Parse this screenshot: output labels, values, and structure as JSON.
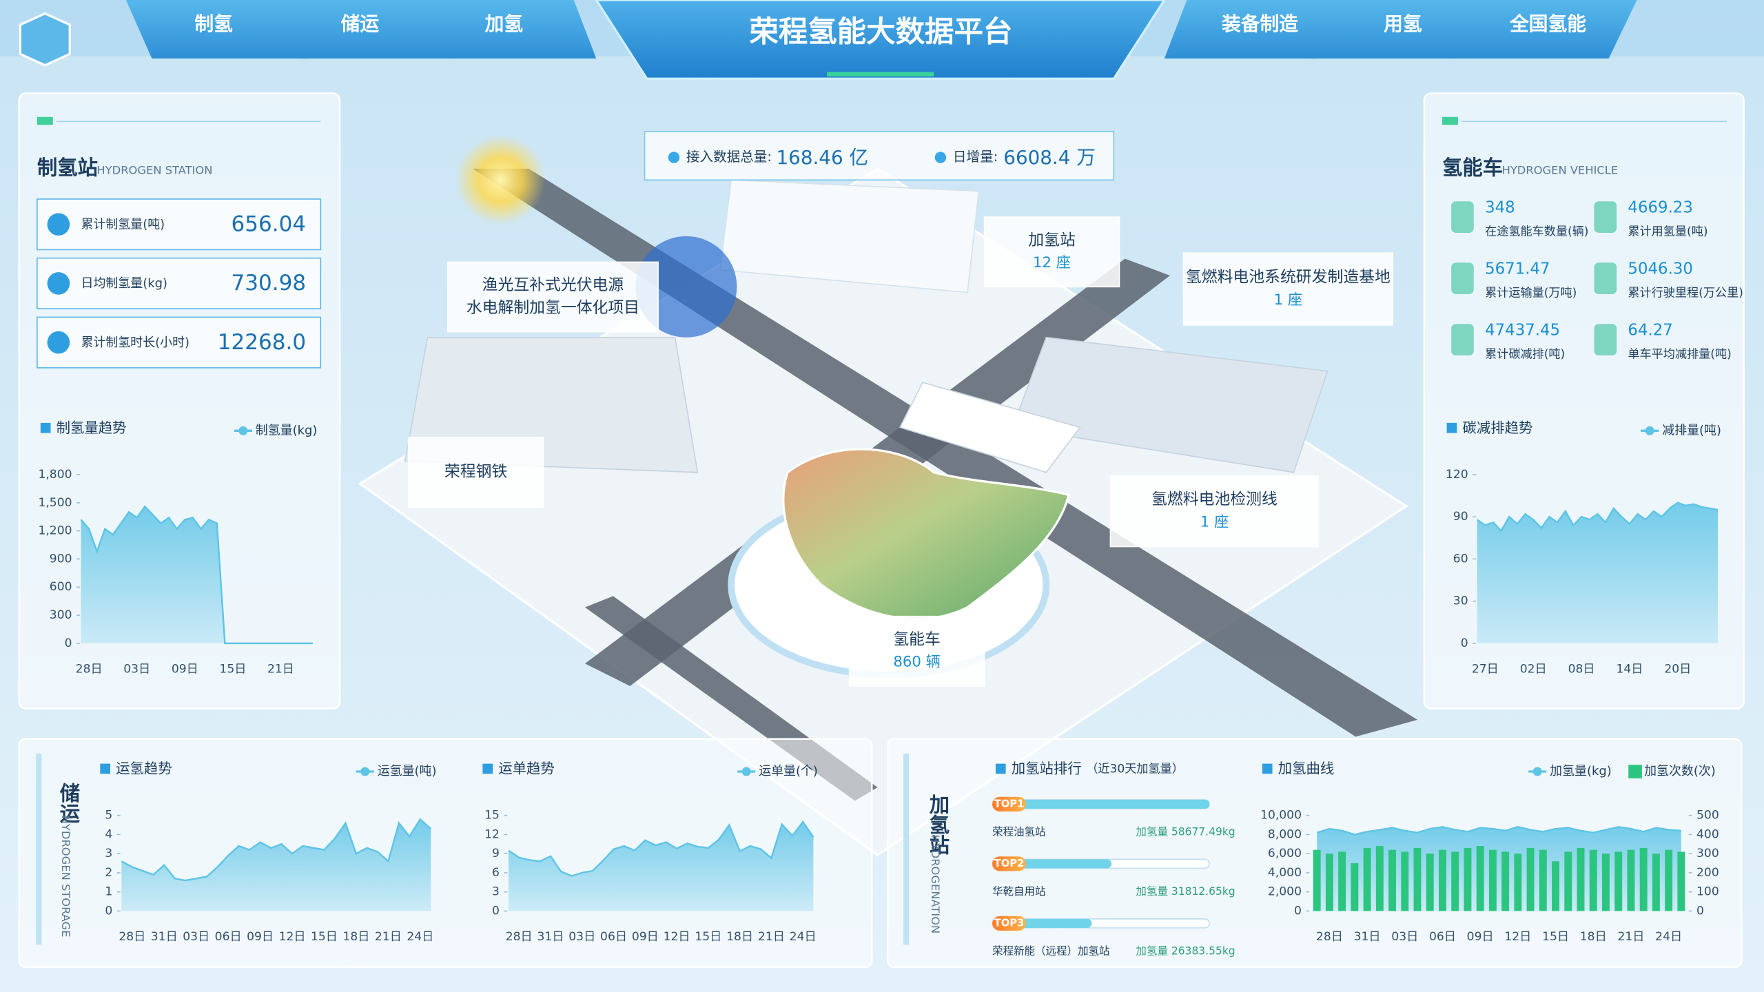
{
  "header": {
    "title": "荣程氢能大数据平台",
    "nav_left": [
      "制氢",
      "储运",
      "加氢"
    ],
    "nav_right": [
      "装备制造",
      "用氢",
      "全国氢能"
    ]
  },
  "stats": {
    "total_label": "接入数据总量:",
    "total": "168.46 亿",
    "daily_label": "日增量:",
    "daily": "6608.4 万"
  },
  "hydrogen_station": {
    "title": "制氢站",
    "subtitle": "HYDROGEN STATION",
    "kpis": [
      {
        "label": "累计制氢量(吨)",
        "value": "656.04"
      },
      {
        "label": "日均制氢量(kg)",
        "value": "730.98"
      },
      {
        "label": "累计制氢时长(小时)",
        "value": "12268.0"
      }
    ]
  },
  "vehicle": {
    "title": "氢能车",
    "subtitle": "HYDROGEN VEHICLE",
    "kpis": [
      {
        "value": "348",
        "label": "在途氢能车数量(辆)"
      },
      {
        "value": "4669.23",
        "label": "累计用氢量(吨)"
      },
      {
        "value": "5671.47",
        "label": "累计运输量(万吨)"
      },
      {
        "value": "5046.30",
        "label": "累计行驶里程(万公里)"
      },
      {
        "value": "47437.45",
        "label": "累计碳减排(吨)"
      },
      {
        "value": "64.27",
        "label": "单车平均减排量(吨)"
      }
    ]
  },
  "storage": {
    "title": "储运",
    "subtitle": "HYDROGEN STORAGE"
  },
  "refuel": {
    "title": "加氢站",
    "subtitle": "HYDROGENATION"
  },
  "map_labels": [
    {
      "lines": [
        "加氢站"
      ],
      "value": "12 座"
    },
    {
      "lines": [
        "氢燃料电池系统研发制造基地"
      ],
      "value": "1 座"
    },
    {
      "lines": [
        "渔光互补式光伏电源",
        "水电解制加氢一体化项目"
      ]
    },
    {
      "lines": [
        "荣程钢铁"
      ]
    },
    {
      "lines": [
        "氢燃料电池检测线"
      ],
      "value": "1 座"
    },
    {
      "lines": [
        "氢能车"
      ],
      "value": "860 辆"
    }
  ],
  "chart_data": [
    {
      "type": "area",
      "title": "制氢量趋势",
      "categories": [
        null,
        "28日",
        null,
        null,
        null,
        null,
        null,
        "03日",
        null,
        null,
        null,
        null,
        null,
        "09日",
        null,
        null,
        null,
        null,
        null,
        "15日",
        null,
        null,
        null,
        null,
        null,
        "21日",
        null,
        null,
        null,
        null
      ],
      "series": [
        {
          "name": "制氢量(kg)",
          "color": "#5ec4e6",
          "values": [
            1320,
            1220,
            980,
            1220,
            1160,
            1280,
            1400,
            1340,
            1460,
            1370,
            1280,
            1340,
            1220,
            1320,
            1340,
            1220,
            1320,
            1280,
            0,
            0,
            0,
            0,
            0,
            0,
            0,
            0,
            0,
            0,
            0,
            0
          ]
        }
      ],
      "ylim": [
        0,
        1800
      ],
      "yticks": [
        0,
        300,
        600,
        900,
        {
          "value": 1200,
          "label": "1,200"
        },
        {
          "value": 1500,
          "label": "1,500"
        },
        {
          "value": 1800,
          "label": "1,800"
        }
      ]
    },
    {
      "type": "area",
      "title": "碳减排趋势",
      "categories": [
        null,
        "27日",
        null,
        null,
        null,
        null,
        null,
        "02日",
        null,
        null,
        null,
        null,
        null,
        "08日",
        null,
        null,
        null,
        null,
        null,
        "14日",
        null,
        null,
        null,
        null,
        null,
        "20日",
        null,
        null,
        null,
        null,
        null
      ],
      "series": [
        {
          "name": "减排量(吨)",
          "color": "#5ec4e6",
          "values": [
            88,
            84,
            86,
            80,
            90,
            85,
            92,
            88,
            82,
            90,
            86,
            94,
            84,
            90,
            88,
            92,
            86,
            96,
            90,
            85,
            92,
            88,
            94,
            90,
            96,
            100,
            98,
            99,
            97,
            96,
            95
          ]
        }
      ],
      "ylim": [
        0,
        120
      ],
      "yticks": [
        0,
        30,
        60,
        90,
        120
      ]
    },
    {
      "type": "area",
      "title": "运氢趋势",
      "categories": [
        null,
        "28日",
        null,
        null,
        "31日",
        null,
        null,
        "03日",
        null,
        null,
        "06日",
        null,
        null,
        "09日",
        null,
        null,
        "12日",
        null,
        null,
        "15日",
        null,
        null,
        "18日",
        null,
        null,
        "21日",
        null,
        null,
        "24日",
        null
      ],
      "series": [
        {
          "name": "运氢量(吨)",
          "color": "#5ec4e6",
          "values": [
            2.6,
            2.3,
            2.1,
            1.9,
            2.4,
            1.7,
            1.6,
            1.7,
            1.8,
            2.3,
            2.9,
            3.4,
            3.2,
            3.6,
            3.3,
            3.5,
            3.0,
            3.4,
            3.3,
            3.2,
            3.8,
            4.6,
            3.0,
            3.3,
            3.1,
            2.6,
            4.6,
            3.9,
            4.8,
            4.3
          ]
        }
      ],
      "ylim": [
        0,
        5
      ],
      "yticks": [
        0,
        1,
        2,
        3,
        4,
        5
      ]
    },
    {
      "type": "area",
      "title": "运单趋势",
      "categories": [
        null,
        "28日",
        null,
        null,
        "31日",
        null,
        null,
        "03日",
        null,
        null,
        "06日",
        null,
        null,
        "09日",
        null,
        null,
        "12日",
        null,
        null,
        "15日",
        null,
        null,
        "18日",
        null,
        null,
        "21日",
        null,
        null,
        "24日",
        null
      ],
      "series": [
        {
          "name": "运单量(个)",
          "color": "#5ec4e6",
          "values": [
            9.5,
            8.4,
            8.0,
            7.8,
            8.6,
            6.2,
            5.5,
            6.0,
            6.3,
            7.9,
            9.7,
            10.2,
            9.5,
            11.1,
            10.3,
            10.8,
            9.8,
            10.6,
            10.1,
            9.9,
            11.2,
            13.5,
            9.4,
            10.2,
            9.7,
            8.3,
            13.6,
            11.8,
            14.0,
            11.6
          ]
        }
      ],
      "ylim": [
        0,
        15
      ],
      "yticks": [
        0,
        3,
        6,
        9,
        12,
        15
      ]
    },
    {
      "type": "bar",
      "orientation": "horizontal",
      "title": "加氢站排行",
      "subtitle": "（近30天加氢量）",
      "rank_labels": [
        "TOP1",
        "TOP2",
        "TOP3"
      ],
      "categories": [
        "荣程油氢站",
        "华乾自用站",
        "荣程新能（远程）加氢站"
      ],
      "values": [
        58677.49,
        31812.65,
        26383.55
      ],
      "value_labels": [
        "加氢量 58677.49kg",
        "加氢量 31812.65kg",
        "加氢量 26383.55kg"
      ],
      "color": "#6fd3ea"
    },
    {
      "type": "combo",
      "title": "加氢曲线",
      "categories": [
        null,
        "28日",
        null,
        null,
        "31日",
        null,
        null,
        "03日",
        null,
        null,
        "06日",
        null,
        null,
        "09日",
        null,
        null,
        "12日",
        null,
        null,
        "15日",
        null,
        null,
        "18日",
        null,
        null,
        "21日",
        null,
        null,
        "24日",
        null
      ],
      "series": [
        {
          "name": "加氢量(kg)",
          "type": "area",
          "color": "#5ec4e6",
          "values": [
            8200,
            8600,
            8400,
            8000,
            8300,
            8500,
            8700,
            8400,
            8200,
            8600,
            8800,
            8500,
            8300,
            8700,
            8600,
            8400,
            8800,
            8500,
            8300,
            8600,
            8700,
            8400,
            8200,
            8500,
            8800,
            8600,
            8300,
            8700,
            8500,
            8400
          ]
        },
        {
          "name": "加氢次数(次)",
          "type": "bar",
          "axis": "y2",
          "color": "#2cc57f",
          "values": [
            320,
            300,
            310,
            250,
            330,
            340,
            320,
            310,
            330,
            300,
            320,
            310,
            330,
            340,
            320,
            310,
            300,
            330,
            320,
            260,
            310,
            330,
            320,
            300,
            310,
            320,
            330,
            300,
            320,
            310
          ]
        }
      ],
      "ylim": [
        0,
        10000
      ],
      "yticks": [
        0,
        {
          "value": 2000,
          "label": "2,000"
        },
        {
          "value": 4000,
          "label": "4,000"
        },
        {
          "value": 6000,
          "label": "6,000"
        },
        {
          "value": 8000,
          "label": "8,000"
        },
        {
          "value": 10000,
          "label": "10,000"
        }
      ],
      "y2lim": [
        0,
        500
      ],
      "y2ticks": [
        0,
        100,
        200,
        300,
        400,
        500
      ]
    }
  ]
}
